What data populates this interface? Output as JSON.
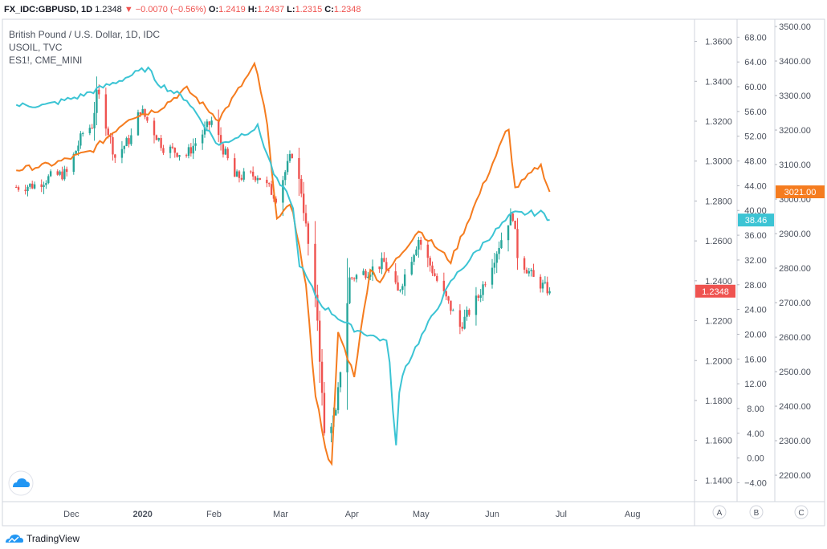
{
  "header": {
    "symbol": "FX_IDC:GBPUSD, 1D",
    "last": "1.2348",
    "change": "▼ −0.0070 (−0.56%)",
    "o_label": "O:",
    "o": "1.2419",
    "h_label": "H:",
    "h": "1.2437",
    "l_label": "L:",
    "l": "1.2315",
    "c_label": "C:",
    "c": "1.2348"
  },
  "legend": {
    "main": "British Pound / U.S. Dollar, 1D, IDC",
    "overlay1": "USOIL, TVC",
    "overlay2": "ES1!, CME_MINI"
  },
  "brand": "TradingView",
  "chart_data": {
    "type": "line",
    "x_ticks": [
      "Dec",
      "2020",
      "Feb",
      "Mar",
      "Apr",
      "May",
      "Jun",
      "Jul",
      "Aug"
    ],
    "scales": {
      "A": {
        "ticks": [
          "1.3600",
          "1.3400",
          "1.3200",
          "1.3000",
          "1.2800",
          "1.2600",
          "1.2400",
          "1.2200",
          "1.2000",
          "1.1800",
          "1.1600",
          "1.1400"
        ],
        "ylim": [
          1.1313,
          1.3711
        ],
        "last_label": "1.2348"
      },
      "B": {
        "ticks": [
          "68.00",
          "64.00",
          "60.00",
          "56.00",
          "52.00",
          "48.00",
          "44.00",
          "40.00",
          "36.00",
          "32.00",
          "28.00",
          "24.00",
          "20.00",
          "16.00",
          "12.00",
          "8.00",
          "4.00",
          "0.00",
          "−4.00"
        ],
        "ylim": [
          -6.4,
          70.9
        ],
        "last_label": "38.46"
      },
      "C": {
        "ticks": [
          "3500.00",
          "3400.00",
          "3300.00",
          "3200.00",
          "3100.00",
          "3000.00",
          "2900.00",
          "2800.00",
          "2700.00",
          "2600.00",
          "2500.00",
          "2400.00",
          "2300.00",
          "2200.00"
        ],
        "ylim": [
          2135,
          3521
        ],
        "last_label": "3021.00"
      }
    },
    "scale_labels": [
      "A",
      "B",
      "C"
    ],
    "colors": {
      "up": "#26a69a",
      "down": "#ef5350",
      "usoil": "#3cc4d4",
      "es": "#f57c1f"
    },
    "series": [
      {
        "name": "British Pound / U.S. Dollar, 1D, IDC",
        "type": "candlestick",
        "scale": "A",
        "dates": [
          "2019-11-07",
          "2019-11-15",
          "2019-11-22",
          "2019-11-29",
          "2019-12-06",
          "2019-12-10",
          "2019-12-12",
          "2019-12-13",
          "2019-12-20",
          "2019-12-27",
          "2019-12-31",
          "2020-01-10",
          "2020-01-20",
          "2020-01-31",
          "2020-02-10",
          "2020-02-20",
          "2020-02-28",
          "2020-03-06",
          "2020-03-10",
          "2020-03-13",
          "2020-03-17",
          "2020-03-20",
          "2020-03-25",
          "2020-03-31",
          "2020-04-08",
          "2020-04-15",
          "2020-04-21",
          "2020-04-30",
          "2020-05-08",
          "2020-05-18",
          "2020-05-26",
          "2020-06-01",
          "2020-06-08",
          "2020-06-10",
          "2020-06-12",
          "2020-06-19",
          "2020-06-26"
        ],
        "close": [
          1.287,
          1.288,
          1.292,
          1.294,
          1.314,
          1.318,
          1.333,
          1.332,
          1.302,
          1.312,
          1.326,
          1.307,
          1.303,
          1.32,
          1.292,
          1.293,
          1.282,
          1.304,
          1.285,
          1.258,
          1.221,
          1.163,
          1.173,
          1.241,
          1.245,
          1.249,
          1.234,
          1.261,
          1.24,
          1.217,
          1.232,
          1.249,
          1.27,
          1.273,
          1.253,
          1.241,
          1.2348
        ]
      },
      {
        "name": "USOIL, TVC",
        "type": "line",
        "scale": "B",
        "dates": [
          "2019-11-07",
          "2019-11-20",
          "2019-12-05",
          "2019-12-20",
          "2020-01-03",
          "2020-01-08",
          "2020-01-20",
          "2020-02-03",
          "2020-02-20",
          "2020-02-28",
          "2020-03-06",
          "2020-03-09",
          "2020-03-18",
          "2020-04-01",
          "2020-04-15",
          "2020-04-17",
          "2020-04-20",
          "2020-04-22",
          "2020-05-01",
          "2020-05-15",
          "2020-05-29",
          "2020-06-10",
          "2020-06-23",
          "2020-06-26"
        ],
        "values": [
          57.0,
          57.0,
          58.5,
          60.7,
          63.0,
          60.5,
          58.0,
          50.5,
          53.5,
          45.0,
          41.5,
          31.5,
          25.0,
          21.0,
          19.0,
          18.2,
          0.5,
          13.0,
          19.5,
          29.0,
          35.0,
          39.5,
          39.6,
          38.46
        ]
      },
      {
        "name": "ES1!, CME_MINI",
        "type": "line",
        "scale": "C",
        "dates": [
          "2019-11-07",
          "2019-11-22",
          "2019-12-10",
          "2019-12-26",
          "2020-01-08",
          "2020-01-20",
          "2020-02-03",
          "2020-02-19",
          "2020-02-24",
          "2020-02-28",
          "2020-03-06",
          "2020-03-12",
          "2020-03-16",
          "2020-03-20",
          "2020-03-23",
          "2020-03-26",
          "2020-04-02",
          "2020-04-09",
          "2020-04-13",
          "2020-04-30",
          "2020-05-14",
          "2020-06-08",
          "2020-06-11",
          "2020-06-22",
          "2020-06-26"
        ],
        "values": [
          3085,
          3100,
          3140,
          3235,
          3260,
          3320,
          3230,
          3390,
          3225,
          2950,
          2980,
          2750,
          2440,
          2300,
          2200,
          2615,
          2490,
          2800,
          2760,
          2910,
          2820,
          3210,
          3030,
          3100,
          3021.0
        ]
      }
    ]
  }
}
